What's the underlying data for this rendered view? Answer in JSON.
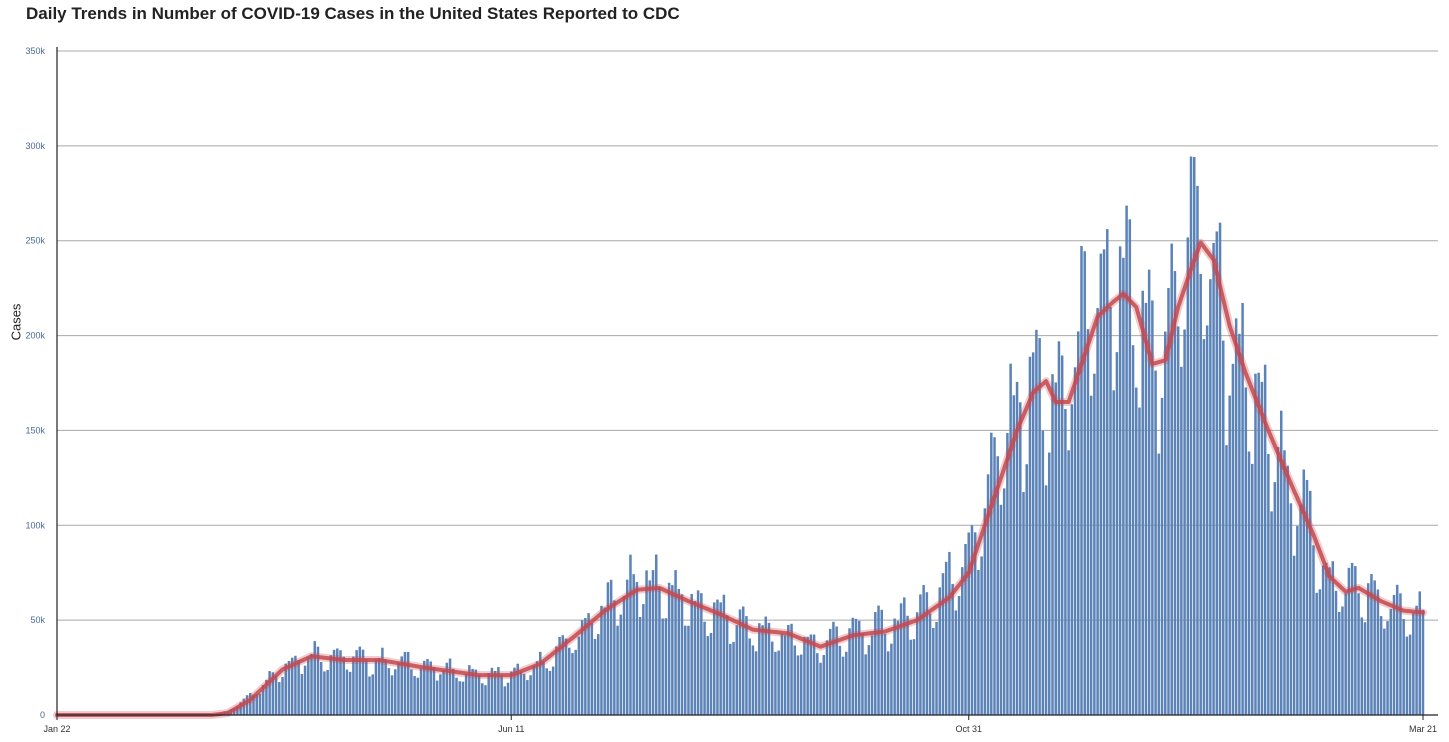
{
  "chart_data": {
    "type": "bar",
    "title": "Daily Trends in Number of COVID-19 Cases in the United States Reported to CDC",
    "ylabel": "Cases",
    "xlabel": "",
    "x_start": "Jan 22",
    "x_end": "Mar 21",
    "x_ticks": [
      "Jan 22",
      "Jun 11",
      "Oct 31",
      "Mar 21"
    ],
    "y_ticks": [
      "0",
      "50k",
      "100k",
      "150k",
      "200k",
      "250k",
      "300k",
      "350k"
    ],
    "ylim": [
      0,
      350000
    ],
    "grid": true,
    "bar_color": "#5b83b8",
    "line_color": "#c4484f",
    "daily_cases_control_points": [
      [
        "Jan 22",
        0
      ],
      [
        "Mar 10",
        0
      ],
      [
        "Mar 15",
        2000
      ],
      [
        "Mar 20",
        8000
      ],
      [
        "Mar 25",
        15000
      ],
      [
        "Apr 1",
        25000
      ],
      [
        "Apr 6",
        30000
      ],
      [
        "Apr 12",
        32000
      ],
      [
        "Apr 20",
        30000
      ],
      [
        "May 1",
        28000
      ],
      [
        "May 10",
        27000
      ],
      [
        "May 20",
        24000
      ],
      [
        "Jun 1",
        21000
      ],
      [
        "Jun 11",
        21000
      ],
      [
        "Jun 15",
        22000
      ],
      [
        "Jun 22",
        28000
      ],
      [
        "Jun 30",
        40000
      ],
      [
        "Jul 8",
        52000
      ],
      [
        "Jul 14",
        62000
      ],
      [
        "Jul 20",
        68000
      ],
      [
        "Jul 25",
        70000
      ],
      [
        "Aug 1",
        64000
      ],
      [
        "Aug 8",
        56000
      ],
      [
        "Aug 16",
        52000
      ],
      [
        "Aug 23",
        45000
      ],
      [
        "Sep 1",
        42000
      ],
      [
        "Sep 10",
        38000
      ],
      [
        "Sep 14",
        36000
      ],
      [
        "Sep 20",
        41000
      ],
      [
        "Oct 1",
        44000
      ],
      [
        "Oct 10",
        49000
      ],
      [
        "Oct 20",
        60000
      ],
      [
        "Oct 31",
        85000
      ],
      [
        "Nov 5",
        110000
      ],
      [
        "Nov 10",
        140000
      ],
      [
        "Nov 15",
        160000
      ],
      [
        "Nov 20",
        172000
      ],
      [
        "Nov 27",
        158000
      ],
      [
        "Dec 3",
        190000
      ],
      [
        "Dec 10",
        212000
      ],
      [
        "Dec 17",
        222000
      ],
      [
        "Dec 22",
        210000
      ],
      [
        "Dec 27",
        180000
      ],
      [
        "Jan 1",
        200000
      ],
      [
        "Jan 5",
        235000
      ],
      [
        "Jan 9",
        255000
      ],
      [
        "Jan 13",
        240000
      ],
      [
        "Jan 20",
        195000
      ],
      [
        "Jan 27",
        165000
      ],
      [
        "Feb 3",
        140000
      ],
      [
        "Feb 10",
        115000
      ],
      [
        "Feb 17",
        85000
      ],
      [
        "Feb 20",
        70000
      ],
      [
        "Feb 25",
        66000
      ],
      [
        "Mar 1",
        68000
      ],
      [
        "Mar 8",
        58000
      ],
      [
        "Mar 15",
        53000
      ],
      [
        "Mar 21",
        53000
      ]
    ],
    "rolling_average_control_points": [
      [
        "Jan 22",
        0
      ],
      [
        "Mar 10",
        0
      ],
      [
        "Mar 15",
        1000
      ],
      [
        "Mar 22",
        8000
      ],
      [
        "Apr 1",
        24000
      ],
      [
        "Apr 10",
        31000
      ],
      [
        "Apr 20",
        29000
      ],
      [
        "May 1",
        29000
      ],
      [
        "May 15",
        25000
      ],
      [
        "Jun 1",
        21000
      ],
      [
        "Jun 11",
        21000
      ],
      [
        "Jun 20",
        27000
      ],
      [
        "Jul 1",
        42000
      ],
      [
        "Jul 10",
        55000
      ],
      [
        "Jul 20",
        66000
      ],
      [
        "Jul 27",
        67000
      ],
      [
        "Aug 5",
        60000
      ],
      [
        "Aug 15",
        53000
      ],
      [
        "Aug 25",
        45000
      ],
      [
        "Sep 5",
        43000
      ],
      [
        "Sep 15",
        36000
      ],
      [
        "Sep 25",
        42000
      ],
      [
        "Oct 5",
        44000
      ],
      [
        "Oct 15",
        50000
      ],
      [
        "Oct 25",
        62000
      ],
      [
        "Oct 31",
        75000
      ],
      [
        "Nov 5",
        100000
      ],
      [
        "Nov 10",
        125000
      ],
      [
        "Nov 15",
        150000
      ],
      [
        "Nov 20",
        170000
      ],
      [
        "Nov 24",
        176000
      ],
      [
        "Nov 27",
        165000
      ],
      [
        "Dec 1",
        165000
      ],
      [
        "Dec 5",
        185000
      ],
      [
        "Dec 10",
        210000
      ],
      [
        "Dec 15",
        218000
      ],
      [
        "Dec 18",
        222000
      ],
      [
        "Dec 22",
        215000
      ],
      [
        "Dec 27",
        185000
      ],
      [
        "Dec 31",
        187000
      ],
      [
        "Jan 4",
        215000
      ],
      [
        "Jan 8",
        235000
      ],
      [
        "Jan 11",
        249000
      ],
      [
        "Jan 15",
        240000
      ],
      [
        "Jan 20",
        205000
      ],
      [
        "Jan 25",
        180000
      ],
      [
        "Feb 1",
        150000
      ],
      [
        "Feb 8",
        122000
      ],
      [
        "Feb 15",
        95000
      ],
      [
        "Feb 20",
        73000
      ],
      [
        "Feb 25",
        65000
      ],
      [
        "Mar 1",
        67000
      ],
      [
        "Mar 8",
        60000
      ],
      [
        "Mar 15",
        55000
      ],
      [
        "Mar 21",
        54000
      ]
    ]
  }
}
